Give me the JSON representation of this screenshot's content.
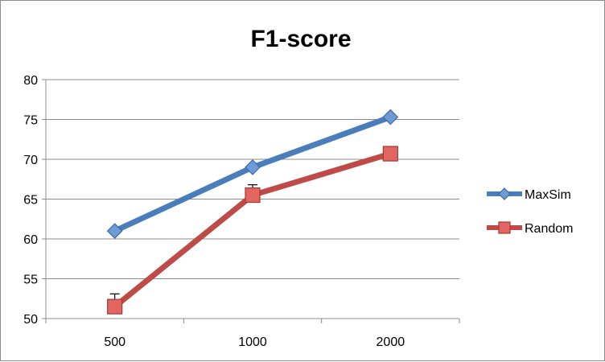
{
  "chart_data": {
    "type": "line",
    "title": "F1-score",
    "xlabel": "",
    "ylabel": "",
    "categories": [
      "500",
      "1000",
      "2000"
    ],
    "ylim": [
      50,
      80
    ],
    "yticks": [
      50,
      55,
      60,
      65,
      70,
      75,
      80
    ],
    "grid": true,
    "legend_position": "right",
    "series": [
      {
        "name": "MaxSim",
        "values": [
          61.0,
          69.0,
          75.3
        ],
        "color": "#4a7ebb",
        "marker": "diamond",
        "errors": [
          null,
          null,
          null
        ]
      },
      {
        "name": "Random",
        "values": [
          51.5,
          65.5,
          70.7
        ],
        "color": "#be4b48",
        "marker": "square",
        "errors": [
          1.6,
          1.3,
          0.9
        ]
      }
    ]
  }
}
